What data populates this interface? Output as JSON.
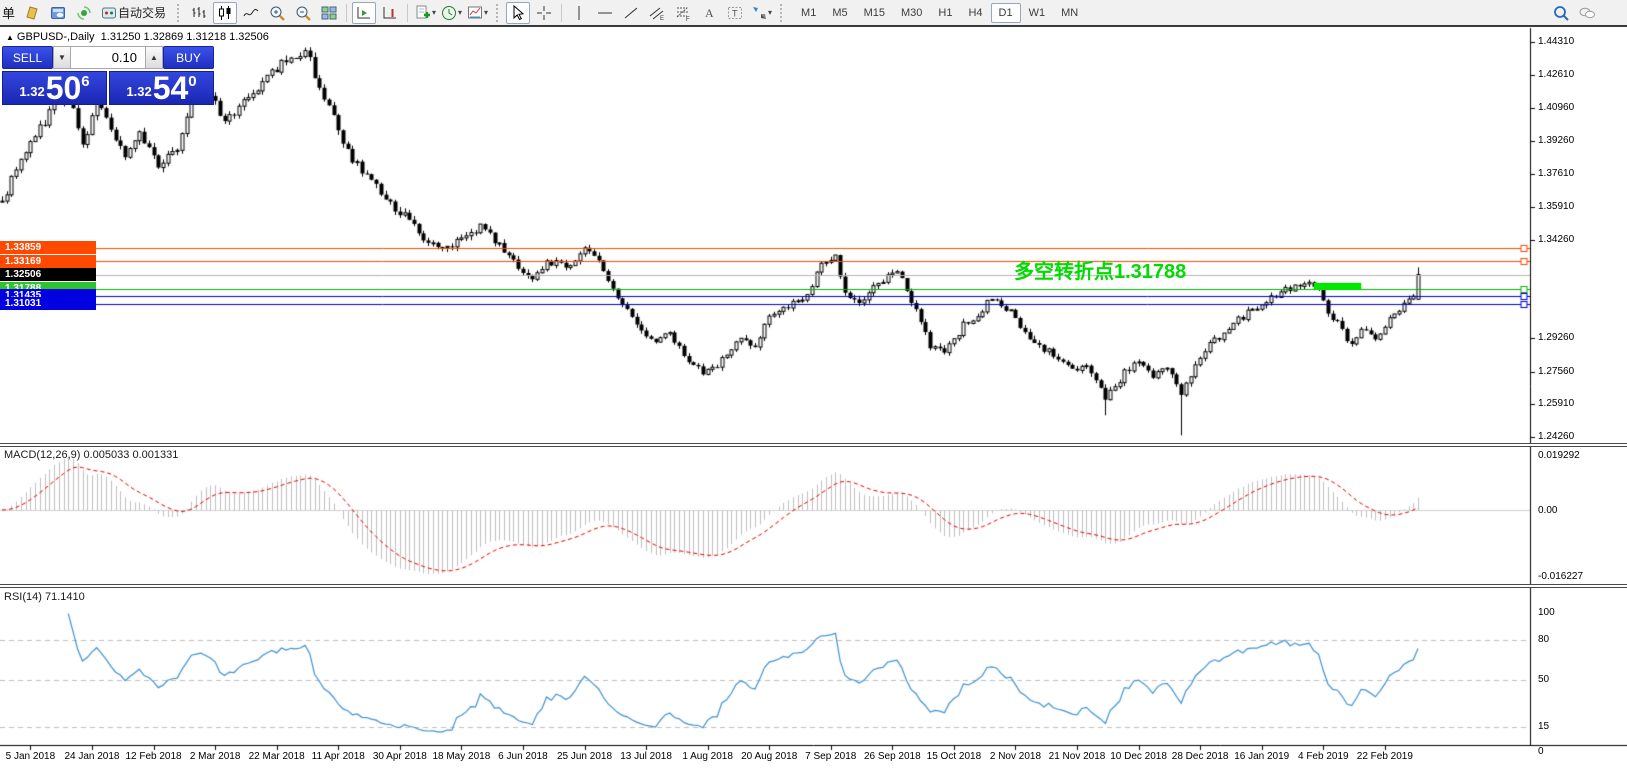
{
  "window": {
    "bg": "#ffffff",
    "toolbar_bg": "#f1f1f1"
  },
  "toolbar": {
    "partial_label": "单",
    "autotrade_label": "自动交易",
    "timeframes": [
      "M1",
      "M5",
      "M15",
      "M30",
      "H1",
      "H4",
      "D1",
      "W1",
      "MN"
    ],
    "active_timeframe": "D1",
    "icons": [
      "new-order",
      "metaeditor",
      "community",
      "autotrading",
      "bar-chart",
      "candlestick-chart",
      "line-chart",
      "zoom-in",
      "zoom-out",
      "tile-windows",
      "auto-scroll",
      "chart-shift",
      "indicators",
      "periods",
      "templates",
      "cursor",
      "crosshair",
      "vertical-line",
      "horizontal-line",
      "trendline",
      "equidistant-channel",
      "fibonacci",
      "text",
      "text-label",
      "arrows",
      "search",
      "chat"
    ]
  },
  "trade_panel": {
    "sell_label": "SELL",
    "buy_label": "BUY",
    "volume": "0.10",
    "sell_price_prefix": "1.32",
    "sell_price_big": "50",
    "sell_price_sup": "6",
    "buy_price_prefix": "1.32",
    "buy_price_big": "54",
    "buy_price_sup": "0"
  },
  "chart_data": [
    {
      "type": "candlestick",
      "title": "GBPUSD-,Daily",
      "ohlc_display": "1.31250 1.32869 1.31218 1.32506",
      "last_bar": {
        "open": 1.3125,
        "high": 1.32869,
        "low": 1.31218,
        "close": 1.32506
      },
      "bars_count": 300,
      "ylim": [
        1.238,
        1.4505
      ],
      "y_ticks": [
        1.4431,
        1.4261,
        1.4096,
        1.3926,
        1.3761,
        1.3591,
        1.3426,
        1.2926,
        1.2756,
        1.2591,
        1.2426
      ],
      "x_labels": [
        "5 Jan 2018",
        "24 Jan 2018",
        "12 Feb 2018",
        "2 Mar 2018",
        "22 Mar 2018",
        "11 Apr 2018",
        "30 Apr 2018",
        "18 May 2018",
        "6 Jun 2018",
        "25 Jun 2018",
        "13 Jul 2018",
        "1 Aug 2018",
        "20 Aug 2018",
        "7 Sep 2018",
        "26 Sep 2018",
        "15 Oct 2018",
        "2 Nov 2018",
        "21 Nov 2018",
        "10 Dec 2018",
        "28 Dec 2018",
        "16 Jan 2019",
        "4 Feb 2019",
        "22 Feb 2019"
      ],
      "price_lines": [
        {
          "price": 1.33859,
          "label": "1.33859",
          "color": "#ff4800",
          "box": "#ff4800",
          "kind": "hline"
        },
        {
          "price": 1.33169,
          "label": "1.33169",
          "color": "#ff4800",
          "box": "#ff4800",
          "kind": "hline"
        },
        {
          "price": 1.32506,
          "label": "1.32506",
          "color": "#b4b4b4",
          "box": "#000000",
          "kind": "current"
        },
        {
          "price": 1.31788,
          "label": "1.31788",
          "color": "#00b400",
          "box": "#2ec42e",
          "kind": "hline"
        },
        {
          "price": 1.31435,
          "label": "1.31435",
          "color": "#0000d2",
          "box": "#0000e0",
          "kind": "hline"
        },
        {
          "price": 1.31031,
          "label": "1.31031",
          "color": "#0000d2",
          "box": "#0000e0",
          "kind": "hline"
        }
      ],
      "annotation": {
        "text": "多空转折点1.31788",
        "color": "#00dc00"
      },
      "highlight": {
        "from_bar": 277,
        "to_bar": 287,
        "price": 1.3192,
        "color": "#00e800"
      },
      "candle_colors": {
        "up_fill": "#ffffff",
        "down_fill": "#000000",
        "border": "#000000"
      },
      "path": [
        [
          0,
          1.362
        ],
        [
          4,
          1.383
        ],
        [
          10,
          1.4075
        ],
        [
          14,
          1.418
        ],
        [
          17,
          1.3895
        ],
        [
          20,
          1.412
        ],
        [
          26,
          1.3845
        ],
        [
          29,
          1.397
        ],
        [
          33,
          1.379
        ],
        [
          37,
          1.3895
        ],
        [
          40,
          1.416
        ],
        [
          43,
          1.4195
        ],
        [
          47,
          1.4035
        ],
        [
          50,
          1.4095
        ],
        [
          56,
          1.426
        ],
        [
          61,
          1.435
        ],
        [
          64,
          1.439
        ],
        [
          67,
          1.421
        ],
        [
          70,
          1.4035
        ],
        [
          74,
          1.383
        ],
        [
          78,
          1.374
        ],
        [
          82,
          1.36
        ],
        [
          85,
          1.3565
        ],
        [
          89,
          1.3435
        ],
        [
          92,
          1.3375
        ],
        [
          97,
          1.3415
        ],
        [
          101,
          1.35
        ],
        [
          104,
          1.3425
        ],
        [
          108,
          1.3315
        ],
        [
          112,
          1.321
        ],
        [
          115,
          1.3325
        ],
        [
          119,
          1.3285
        ],
        [
          123,
          1.3375
        ],
        [
          126,
          1.3315
        ],
        [
          130,
          1.312
        ],
        [
          134,
          1.2995
        ],
        [
          138,
          1.2905
        ],
        [
          141,
          1.296
        ],
        [
          145,
          1.2815
        ],
        [
          148,
          1.2755
        ],
        [
          151,
          1.279
        ],
        [
          155,
          1.2915
        ],
        [
          159,
          1.289
        ],
        [
          162,
          1.303
        ],
        [
          166,
          1.308
        ],
        [
          170,
          1.3145
        ],
        [
          173,
          1.3315
        ],
        [
          176,
          1.3335
        ],
        [
          178,
          1.3145
        ],
        [
          182,
          1.311
        ],
        [
          185,
          1.321
        ],
        [
          189,
          1.3265
        ],
        [
          192,
          1.312
        ],
        [
          196,
          1.289
        ],
        [
          199,
          1.2855
        ],
        [
          203,
          1.2995
        ],
        [
          206,
          1.3045
        ],
        [
          209,
          1.313
        ],
        [
          213,
          1.307
        ],
        [
          216,
          1.296
        ],
        [
          219,
          1.289
        ],
        [
          223,
          1.2825
        ],
        [
          226,
          1.2765
        ],
        [
          229,
          1.2805
        ],
        [
          233,
          1.2615
        ],
        [
          237,
          1.2755
        ],
        [
          240,
          1.2805
        ],
        [
          243,
          1.274
        ],
        [
          246,
          1.2775
        ],
        [
          249,
          1.2625
        ],
        [
          252,
          1.2805
        ],
        [
          255,
          1.2905
        ],
        [
          259,
          1.297
        ],
        [
          262,
          1.304
        ],
        [
          265,
          1.309
        ],
        [
          268,
          1.313
        ],
        [
          271,
          1.317
        ],
        [
          274,
          1.32
        ],
        [
          276,
          1.3215
        ],
        [
          278,
          1.319
        ],
        [
          280,
          1.307
        ],
        [
          283,
          1.297
        ],
        [
          285,
          1.289
        ],
        [
          287,
          1.2965
        ],
        [
          290,
          1.2925
        ],
        [
          293,
          1.302
        ],
        [
          295,
          1.307
        ],
        [
          297,
          1.312
        ],
        [
          298,
          1.3125
        ],
        [
          299,
          1.32506
        ]
      ],
      "wick_lows": [
        [
          233,
          1.2536
        ],
        [
          249,
          1.2434
        ]
      ]
    },
    {
      "type": "macd_histogram",
      "label": "MACD(12,26,9)",
      "params": [
        12,
        26,
        9
      ],
      "value_main": "0.005033",
      "value_signal": "0.001331",
      "y_ticks": [
        "0.019292",
        "0.00",
        "-0.016227"
      ],
      "colors": {
        "histogram": "#c0c0c0",
        "signal": "#e60000",
        "zero_line": "#d2d2d2"
      }
    },
    {
      "type": "rsi",
      "label": "RSI(14)",
      "period": 14,
      "value": "71.1410",
      "levels": [
        80,
        50,
        15
      ],
      "y_ticks": [
        100,
        80,
        50,
        15,
        0
      ],
      "colors": {
        "line": "#3f92d2",
        "levels": "#c0c0c0"
      }
    }
  ]
}
